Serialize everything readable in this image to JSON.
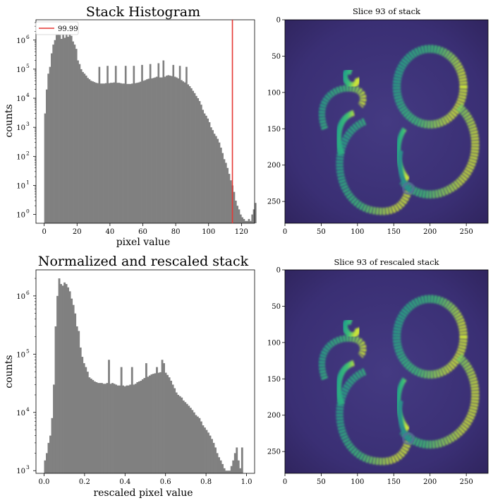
{
  "colors": {
    "bars": "#808080",
    "threshold_line": "#e53935",
    "image_low": "#3b2a6e",
    "image_high": "#dde83a"
  },
  "chart_data": [
    {
      "id": "stack-histogram",
      "type": "bar",
      "title": "Stack Histogram",
      "xlabel": "pixel value",
      "ylabel": "counts",
      "yscale": "log",
      "xlim": [
        -5,
        128
      ],
      "ylim": [
        0.5,
        5000000
      ],
      "xticks": [
        0,
        20,
        40,
        60,
        80,
        100,
        120
      ],
      "xtick_labels": [
        "0",
        "20",
        "40",
        "60",
        "80",
        "100",
        "120"
      ],
      "ytick_exponents": [
        0,
        1,
        2,
        3,
        4,
        5,
        6
      ],
      "ytick_labels": [
        "10",
        "10",
        "10",
        "10",
        "10",
        "10",
        "10"
      ],
      "ytick_exp_labels": [
        "0",
        "1",
        "2",
        "3",
        "4",
        "5",
        "6"
      ],
      "bin_width": 1,
      "bin_start": 0,
      "values": [
        3000,
        20000,
        70000,
        120000,
        350000,
        700000,
        1000000,
        1500000,
        2500000,
        1500000,
        1100000,
        1700000,
        1200000,
        2000000,
        1300000,
        2100000,
        1400000,
        900000,
        700000,
        500000,
        200000,
        150000,
        100000,
        80000,
        70000,
        60000,
        50000,
        45000,
        40000,
        38000,
        36000,
        34000,
        33000,
        120000,
        32000,
        32000,
        32000,
        33000,
        130000,
        33000,
        34000,
        34000,
        35000,
        130000,
        34000,
        34000,
        33000,
        32000,
        32000,
        130000,
        31000,
        31000,
        31000,
        32000,
        130000,
        33000,
        34000,
        35000,
        37000,
        140000,
        40000,
        42000,
        45000,
        47000,
        150000,
        48000,
        50000,
        52000,
        55000,
        160000,
        52000,
        52000,
        200000,
        55000,
        60000,
        62000,
        60000,
        58000,
        140000,
        55000,
        52000,
        48000,
        130000,
        42000,
        38000,
        35000,
        120000,
        30000,
        26000,
        22000,
        18000,
        15000,
        12000,
        10000,
        8000,
        6000,
        4000,
        3000,
        2500,
        2000,
        1500,
        1000,
        800,
        600,
        500,
        400,
        300,
        200,
        130,
        80,
        60,
        40,
        25,
        15,
        10,
        6,
        3,
        2,
        1.5,
        1,
        0.8,
        0.7,
        0.6,
        0.6,
        0.7,
        0.6,
        1,
        1.5,
        2.5
      ],
      "threshold": {
        "value": 114.5,
        "label": "99.99"
      },
      "legend_loc": "upper left"
    },
    {
      "id": "rescaled-histogram",
      "type": "bar",
      "title": "Normalized and rescaled stack",
      "xlabel": "rescaled pixel value",
      "ylabel": "counts",
      "yscale": "log",
      "xlim": [
        -0.04,
        1.04
      ],
      "ylim": [
        900,
        2800000
      ],
      "xticks": [
        0.0,
        0.2,
        0.4,
        0.6,
        0.8,
        1.0
      ],
      "xtick_labels": [
        "0.0",
        "0.2",
        "0.4",
        "0.6",
        "0.8",
        "1.0"
      ],
      "ytick_exponents": [
        3,
        4,
        5,
        6
      ],
      "ytick_labels": [
        "10",
        "10",
        "10",
        "10"
      ],
      "ytick_exp_labels": [
        "3",
        "4",
        "5",
        "6"
      ],
      "bin_width": 0.00877,
      "bin_start": 0.0,
      "values": [
        1500,
        2000,
        3000,
        4000,
        8000,
        30000,
        300000,
        1000000,
        2000000,
        1600000,
        1500000,
        1700000,
        1600000,
        1400000,
        1200000,
        900000,
        700000,
        500000,
        300000,
        250000,
        130000,
        90000,
        70000,
        60000,
        50000,
        40000,
        38000,
        36000,
        34000,
        33000,
        32000,
        32000,
        32000,
        31000,
        31000,
        32000,
        80000,
        31000,
        32000,
        31000,
        30000,
        29000,
        29000,
        60000,
        29000,
        28000,
        29000,
        29000,
        30000,
        60000,
        30000,
        31000,
        33000,
        34000,
        35000,
        37000,
        39000,
        70000,
        41000,
        43000,
        45000,
        46000,
        47000,
        60000,
        48000,
        49000,
        80000,
        70000,
        48000,
        44000,
        40000,
        35000,
        30000,
        26000,
        22000,
        20000,
        19000,
        18000,
        16000,
        15000,
        14000,
        13000,
        12000,
        11000,
        10000,
        9000,
        8500,
        8000,
        7000,
        6000,
        5500,
        5000,
        4500,
        4000,
        3500,
        3000,
        2500,
        2000,
        1700,
        1500,
        1300,
        1100,
        1000,
        1000,
        1000,
        1200,
        1500,
        2000,
        2500,
        1500,
        1100,
        2500
      ],
      "legend_loc": ""
    }
  ],
  "images": [
    {
      "id": "slice-stack",
      "title": "Slice 93 of stack",
      "xticks": [
        0,
        50,
        100,
        150,
        200,
        250
      ],
      "xtick_labels": [
        "0",
        "50",
        "100",
        "150",
        "200",
        "250"
      ],
      "yticks": [
        0,
        50,
        100,
        150,
        200,
        250
      ],
      "ytick_labels": [
        "0",
        "50",
        "100",
        "150",
        "200",
        "250"
      ],
      "extent": [
        0,
        280
      ]
    },
    {
      "id": "slice-rescaled",
      "title": "Slice 93 of rescaled stack",
      "xticks": [
        0,
        50,
        100,
        150,
        200,
        250
      ],
      "xtick_labels": [
        "0",
        "50",
        "100",
        "150",
        "200",
        "250"
      ],
      "yticks": [
        0,
        50,
        100,
        150,
        200,
        250
      ],
      "ytick_labels": [
        "0",
        "50",
        "100",
        "150",
        "200",
        "250"
      ],
      "extent": [
        0,
        280
      ]
    }
  ]
}
